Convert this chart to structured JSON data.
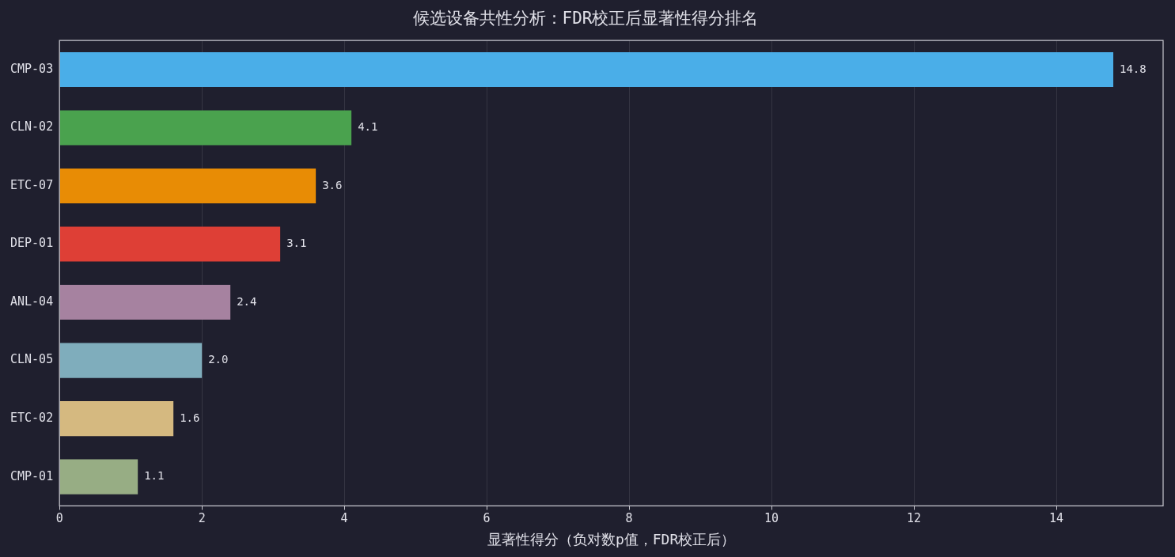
{
  "chart_data": {
    "type": "bar",
    "orientation": "horizontal",
    "title": "候选设备共性分析：FDR校正后显著性得分排名",
    "xlabel": "显著性得分（负对数p值，FDR校正后）",
    "categories": [
      "CMP-03",
      "CLN-02",
      "ETC-07",
      "DEP-01",
      "ANL-04",
      "CLN-05",
      "ETC-02",
      "CMP-01"
    ],
    "values": [
      14.8,
      4.1,
      3.6,
      3.1,
      2.4,
      2.0,
      1.6,
      1.1
    ],
    "colors": [
      "#4aaee8",
      "#4aa24e",
      "#e88c05",
      "#de3f36",
      "#a682a0",
      "#7fadbc",
      "#d5b980",
      "#97ad84"
    ],
    "value_labels": [
      "14.8",
      "4.1",
      "3.6",
      "3.1",
      "2.4",
      "2.0",
      "1.6",
      "1.1"
    ],
    "xlim": [
      0,
      15.5
    ],
    "xticks": [
      0,
      2,
      4,
      6,
      8,
      10,
      12,
      14
    ],
    "grid": "x",
    "legend": false
  }
}
